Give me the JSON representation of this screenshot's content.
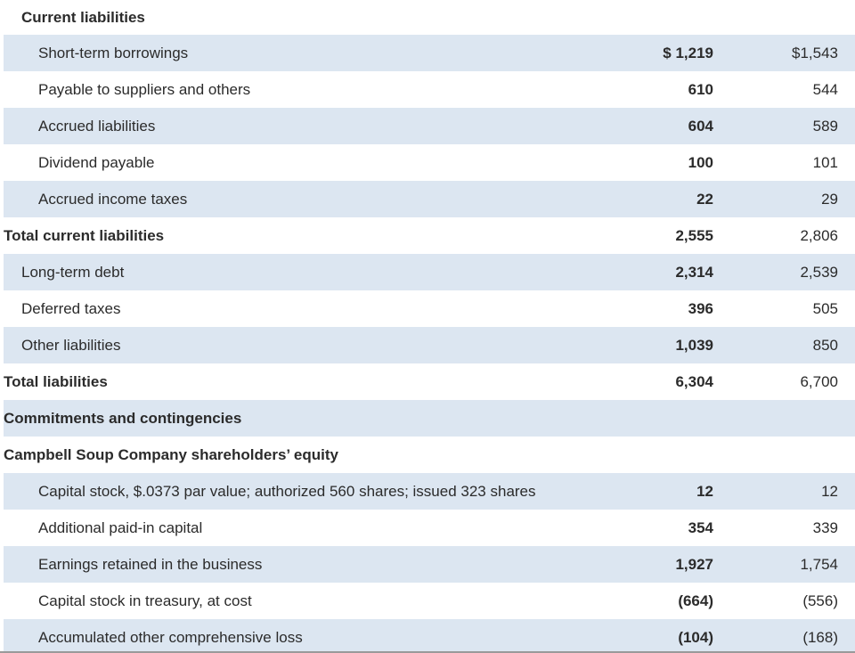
{
  "section_heading": "Current liabilities",
  "rows": [
    {
      "label": "Short-term borrowings",
      "current": "$ 1,219",
      "prior": "$1,543",
      "style": "indent",
      "shaded": true
    },
    {
      "label": "Payable to suppliers and others",
      "current": "610",
      "prior": "544",
      "style": "indent",
      "shaded": false
    },
    {
      "label": "Accrued liabilities",
      "current": "604",
      "prior": "589",
      "style": "indent",
      "shaded": true
    },
    {
      "label": "Dividend payable",
      "current": "100",
      "prior": "101",
      "style": "indent",
      "shaded": false
    },
    {
      "label": "Accrued income taxes",
      "current": "22",
      "prior": "29",
      "style": "indent",
      "shaded": true
    },
    {
      "label": "Total current liabilities",
      "current": "2,555",
      "prior": "2,806",
      "style": "bold",
      "shaded": false
    },
    {
      "label": "Long-term debt",
      "current": "2,314",
      "prior": "2,539",
      "style": "flush",
      "shaded": true
    },
    {
      "label": "Deferred taxes",
      "current": "396",
      "prior": "505",
      "style": "flush",
      "shaded": false
    },
    {
      "label": "Other liabilities",
      "current": "1,039",
      "prior": "850",
      "style": "flush",
      "shaded": true
    },
    {
      "label": "Total liabilities",
      "current": "6,304",
      "prior": "6,700",
      "style": "bold",
      "shaded": false
    },
    {
      "label": "Commitments and contingencies",
      "current": "",
      "prior": "",
      "style": "bold",
      "shaded": true
    },
    {
      "label": "Campbell Soup Company shareholders’ equity",
      "current": "",
      "prior": "",
      "style": "bold",
      "shaded": false
    },
    {
      "label": "Capital stock, $.0373 par value; authorized 560 shares; issued 323 shares",
      "current": "12",
      "prior": "12",
      "style": "indent",
      "shaded": true
    },
    {
      "label": "Additional paid-in capital",
      "current": "354",
      "prior": "339",
      "style": "indent",
      "shaded": false
    },
    {
      "label": "Earnings retained in the business",
      "current": "1,927",
      "prior": "1,754",
      "style": "indent",
      "shaded": true
    },
    {
      "label": "Capital stock in treasury, at cost",
      "current": "(664)",
      "prior": "(556)",
      "style": "indent",
      "shaded": false
    },
    {
      "label": "Accumulated other comprehensive loss",
      "current": "(104)",
      "prior": "(168)",
      "style": "indent",
      "shaded": true
    }
  ]
}
